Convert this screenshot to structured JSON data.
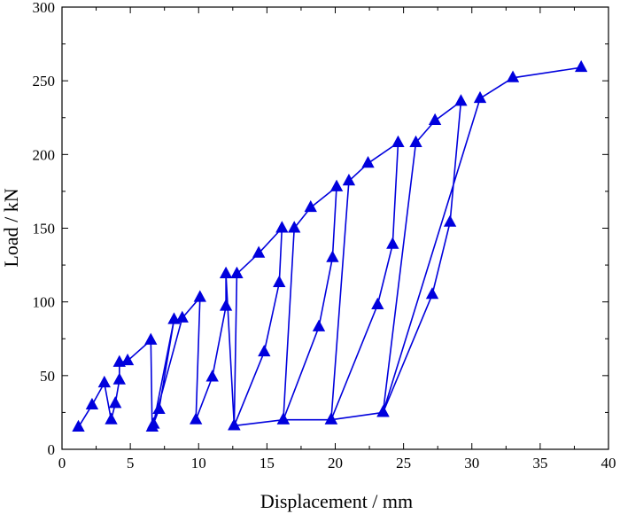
{
  "chart_data": {
    "type": "line",
    "xlabel": "Displacement / mm",
    "ylabel": "Load / kN",
    "xlim": [
      0,
      40
    ],
    "ylim": [
      0,
      300
    ],
    "xticks": [
      "0",
      "5",
      "10",
      "15",
      "20",
      "25",
      "30",
      "35",
      "40"
    ],
    "yticks": [
      "0",
      "50",
      "100",
      "150",
      "200",
      "250",
      "300"
    ],
    "grid": false,
    "legend": "none",
    "marker": "triangle",
    "color": "#0000dd",
    "series": [
      {
        "points": [
          [
            1.2,
            15
          ],
          [
            2.2,
            30
          ],
          [
            3.1,
            45
          ],
          [
            3.6,
            20
          ],
          [
            3.9,
            31
          ],
          [
            4.2,
            47
          ],
          [
            4.2,
            59
          ],
          [
            4.8,
            60
          ],
          [
            6.5,
            74
          ],
          [
            6.6,
            15
          ],
          [
            7.1,
            27
          ],
          [
            8.2,
            88
          ],
          [
            6.7,
            17
          ],
          [
            8.8,
            89
          ],
          [
            10.1,
            103
          ],
          [
            9.8,
            20
          ],
          [
            11.0,
            49
          ],
          [
            12.0,
            97
          ],
          [
            12.0,
            119
          ],
          [
            12.6,
            16
          ],
          [
            12.8,
            119
          ],
          [
            14.4,
            133
          ],
          [
            16.1,
            150
          ],
          [
            15.9,
            113
          ],
          [
            14.8,
            66
          ],
          [
            12.6,
            16
          ],
          [
            16.2,
            20
          ],
          [
            17.0,
            150
          ],
          [
            18.2,
            164
          ],
          [
            20.1,
            178
          ],
          [
            19.8,
            130
          ],
          [
            18.8,
            83
          ],
          [
            16.2,
            20
          ],
          [
            19.7,
            20
          ],
          [
            21.0,
            182
          ],
          [
            22.4,
            194
          ],
          [
            24.6,
            208
          ],
          [
            24.2,
            139
          ],
          [
            23.1,
            98
          ],
          [
            19.7,
            20
          ],
          [
            23.5,
            25
          ],
          [
            25.9,
            208
          ],
          [
            27.3,
            223
          ],
          [
            29.2,
            236
          ],
          [
            28.4,
            154
          ],
          [
            27.1,
            105
          ],
          [
            23.5,
            25
          ],
          [
            30.6,
            238
          ],
          [
            33.0,
            252
          ],
          [
            38.0,
            259
          ]
        ]
      }
    ]
  }
}
